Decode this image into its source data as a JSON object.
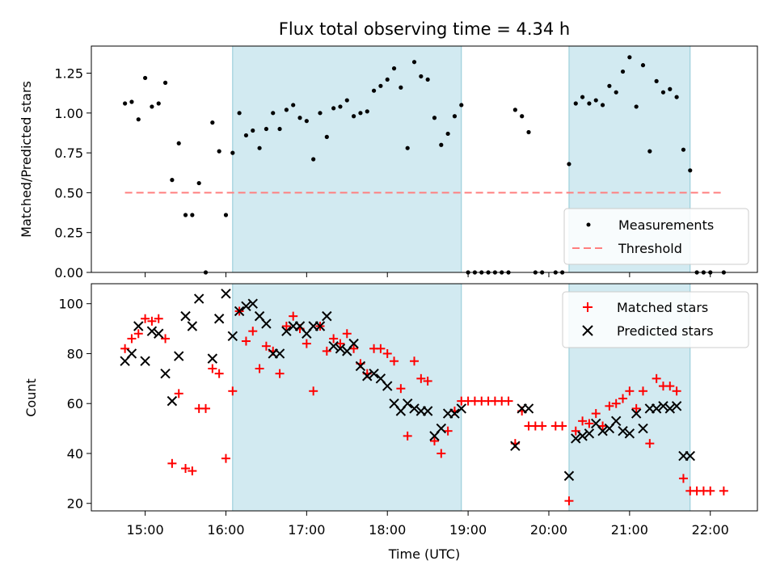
{
  "title": "Flux total observing time = 4.34 h",
  "shading_color": "#add8e6",
  "shaded_intervals": [
    [
      "16:05",
      "18:55"
    ],
    [
      "20:15",
      "21:45"
    ]
  ],
  "chart_data": [
    {
      "type": "scatter",
      "ylabel": "Matched/Predicted stars",
      "ylim": [
        0,
        1.42
      ],
      "yticks": [
        "0.00",
        "0.25",
        "0.50",
        "0.75",
        "1.00",
        "1.25"
      ],
      "legend": {
        "placement": "lower-right",
        "entries": [
          "Measurements",
          "Threshold"
        ]
      },
      "threshold": {
        "name": "Threshold",
        "value": 0.5,
        "x_range": [
          "14:45",
          "22:10"
        ],
        "color": "#ff7f7f"
      },
      "series": [
        {
          "name": "Measurements",
          "color": "#000000",
          "marker": "dot",
          "points": [
            [
              "14:45",
              1.06
            ],
            [
              "14:50",
              1.07
            ],
            [
              "14:55",
              0.96
            ],
            [
              "15:00",
              1.22
            ],
            [
              "15:05",
              1.04
            ],
            [
              "15:10",
              1.06
            ],
            [
              "15:15",
              1.19
            ],
            [
              "15:20",
              0.58
            ],
            [
              "15:25",
              0.81
            ],
            [
              "15:30",
              0.36
            ],
            [
              "15:35",
              0.36
            ],
            [
              "15:40",
              0.56
            ],
            [
              "15:45",
              0.0
            ],
            [
              "15:50",
              0.94
            ],
            [
              "15:55",
              0.76
            ],
            [
              "16:00",
              0.36
            ],
            [
              "16:05",
              0.75
            ],
            [
              "16:10",
              1.0
            ],
            [
              "16:15",
              0.86
            ],
            [
              "16:20",
              0.89
            ],
            [
              "16:25",
              0.78
            ],
            [
              "16:30",
              0.9
            ],
            [
              "16:35",
              1.0
            ],
            [
              "16:40",
              0.9
            ],
            [
              "16:45",
              1.02
            ],
            [
              "16:50",
              1.05
            ],
            [
              "16:55",
              0.97
            ],
            [
              "17:00",
              0.95
            ],
            [
              "17:05",
              0.71
            ],
            [
              "17:10",
              1.0
            ],
            [
              "17:15",
              0.85
            ],
            [
              "17:20",
              1.03
            ],
            [
              "17:25",
              1.04
            ],
            [
              "17:30",
              1.08
            ],
            [
              "17:35",
              0.98
            ],
            [
              "17:40",
              1.0
            ],
            [
              "17:45",
              1.01
            ],
            [
              "17:50",
              1.14
            ],
            [
              "17:55",
              1.17
            ],
            [
              "18:00",
              1.21
            ],
            [
              "18:05",
              1.28
            ],
            [
              "18:10",
              1.16
            ],
            [
              "18:15",
              0.78
            ],
            [
              "18:20",
              1.32
            ],
            [
              "18:25",
              1.23
            ],
            [
              "18:30",
              1.21
            ],
            [
              "18:35",
              0.97
            ],
            [
              "18:40",
              0.8
            ],
            [
              "18:45",
              0.87
            ],
            [
              "18:50",
              0.98
            ],
            [
              "18:55",
              1.05
            ],
            [
              "19:00",
              0.0
            ],
            [
              "19:05",
              0.0
            ],
            [
              "19:10",
              0.0
            ],
            [
              "19:15",
              0.0
            ],
            [
              "19:20",
              0.0
            ],
            [
              "19:25",
              0.0
            ],
            [
              "19:30",
              0.0
            ],
            [
              "19:35",
              1.02
            ],
            [
              "19:40",
              0.98
            ],
            [
              "19:45",
              0.88
            ],
            [
              "19:50",
              0.0
            ],
            [
              "19:55",
              0.0
            ],
            [
              "20:05",
              0.0
            ],
            [
              "20:10",
              0.0
            ],
            [
              "20:15",
              0.68
            ],
            [
              "20:20",
              1.06
            ],
            [
              "20:25",
              1.1
            ],
            [
              "20:30",
              1.06
            ],
            [
              "20:35",
              1.08
            ],
            [
              "20:40",
              1.05
            ],
            [
              "20:45",
              1.17
            ],
            [
              "20:50",
              1.13
            ],
            [
              "20:55",
              1.26
            ],
            [
              "21:00",
              1.35
            ],
            [
              "21:05",
              1.04
            ],
            [
              "21:10",
              1.3
            ],
            [
              "21:15",
              0.76
            ],
            [
              "21:20",
              1.2
            ],
            [
              "21:25",
              1.13
            ],
            [
              "21:30",
              1.15
            ],
            [
              "21:35",
              1.1
            ],
            [
              "21:40",
              0.77
            ],
            [
              "21:45",
              0.64
            ],
            [
              "21:50",
              0.0
            ],
            [
              "21:55",
              0.0
            ],
            [
              "22:00",
              0.0
            ],
            [
              "22:10",
              0.0
            ]
          ]
        }
      ]
    },
    {
      "type": "scatter",
      "xlabel": "Time (UTC)",
      "ylabel": "Count",
      "ylim": [
        17,
        108
      ],
      "yticks": [
        "20",
        "40",
        "60",
        "80",
        "100"
      ],
      "xlim": [
        "14:20",
        "22:35"
      ],
      "xticks": [
        "15:00",
        "16:00",
        "17:00",
        "18:00",
        "19:00",
        "20:00",
        "21:00",
        "22:00"
      ],
      "legend": {
        "placement": "top-right",
        "entries": [
          "Matched stars",
          "Predicted stars"
        ]
      },
      "series": [
        {
          "name": "Matched stars",
          "color": "#ff0000",
          "marker": "plus",
          "points": [
            [
              "14:45",
              82
            ],
            [
              "14:50",
              86
            ],
            [
              "14:55",
              88
            ],
            [
              "15:00",
              94
            ],
            [
              "15:05",
              93
            ],
            [
              "15:10",
              94
            ],
            [
              "15:15",
              86
            ],
            [
              "15:20",
              36
            ],
            [
              "15:25",
              64
            ],
            [
              "15:30",
              34
            ],
            [
              "15:35",
              33
            ],
            [
              "15:40",
              58
            ],
            [
              "15:45",
              58
            ],
            [
              "15:50",
              74
            ],
            [
              "15:55",
              72
            ],
            [
              "16:00",
              38
            ],
            [
              "16:05",
              65
            ],
            [
              "16:10",
              97
            ],
            [
              "16:15",
              85
            ],
            [
              "16:20",
              89
            ],
            [
              "16:25",
              74
            ],
            [
              "16:30",
              83
            ],
            [
              "16:35",
              81
            ],
            [
              "16:40",
              72
            ],
            [
              "16:45",
              91
            ],
            [
              "16:50",
              95
            ],
            [
              "16:55",
              90
            ],
            [
              "17:00",
              84
            ],
            [
              "17:05",
              65
            ],
            [
              "17:10",
              91
            ],
            [
              "17:15",
              81
            ],
            [
              "17:20",
              86
            ],
            [
              "17:25",
              84
            ],
            [
              "17:30",
              88
            ],
            [
              "17:35",
              82
            ],
            [
              "17:40",
              76
            ],
            [
              "17:45",
              72
            ],
            [
              "17:50",
              82
            ],
            [
              "17:55",
              82
            ],
            [
              "18:00",
              80
            ],
            [
              "18:05",
              77
            ],
            [
              "18:10",
              66
            ],
            [
              "18:15",
              47
            ],
            [
              "18:20",
              77
            ],
            [
              "18:25",
              70
            ],
            [
              "18:30",
              69
            ],
            [
              "18:35",
              45
            ],
            [
              "18:40",
              40
            ],
            [
              "18:45",
              49
            ],
            [
              "18:50",
              57
            ],
            [
              "18:55",
              61
            ],
            [
              "19:00",
              61
            ],
            [
              "19:05",
              61
            ],
            [
              "19:10",
              61
            ],
            [
              "19:15",
              61
            ],
            [
              "19:20",
              61
            ],
            [
              "19:25",
              61
            ],
            [
              "19:30",
              61
            ],
            [
              "19:35",
              44
            ],
            [
              "19:40",
              57
            ],
            [
              "19:45",
              51
            ],
            [
              "19:50",
              51
            ],
            [
              "19:55",
              51
            ],
            [
              "20:05",
              51
            ],
            [
              "20:10",
              51
            ],
            [
              "20:15",
              21
            ],
            [
              "20:20",
              49
            ],
            [
              "20:25",
              53
            ],
            [
              "20:30",
              52
            ],
            [
              "20:35",
              56
            ],
            [
              "20:40",
              51
            ],
            [
              "20:45",
              59
            ],
            [
              "20:50",
              60
            ],
            [
              "20:55",
              62
            ],
            [
              "21:00",
              65
            ],
            [
              "21:05",
              58
            ],
            [
              "21:10",
              65
            ],
            [
              "21:15",
              44
            ],
            [
              "21:20",
              70
            ],
            [
              "21:25",
              67
            ],
            [
              "21:30",
              67
            ],
            [
              "21:35",
              65
            ],
            [
              "21:40",
              30
            ],
            [
              "21:45",
              25
            ],
            [
              "21:50",
              25
            ],
            [
              "21:55",
              25
            ],
            [
              "22:00",
              25
            ],
            [
              "22:10",
              25
            ]
          ]
        },
        {
          "name": "Predicted stars",
          "color": "#000000",
          "marker": "x",
          "points": [
            [
              "14:45",
              77
            ],
            [
              "14:50",
              80
            ],
            [
              "14:55",
              91
            ],
            [
              "15:00",
              77
            ],
            [
              "15:05",
              89
            ],
            [
              "15:10",
              88
            ],
            [
              "15:15",
              72
            ],
            [
              "15:20",
              61
            ],
            [
              "15:25",
              79
            ],
            [
              "15:30",
              95
            ],
            [
              "15:35",
              91
            ],
            [
              "15:40",
              102
            ],
            [
              "15:50",
              78
            ],
            [
              "15:55",
              94
            ],
            [
              "16:00",
              104
            ],
            [
              "16:05",
              87
            ],
            [
              "16:10",
              97
            ],
            [
              "16:15",
              99
            ],
            [
              "16:20",
              100
            ],
            [
              "16:25",
              95
            ],
            [
              "16:30",
              92
            ],
            [
              "16:35",
              80
            ],
            [
              "16:40",
              80
            ],
            [
              "16:45",
              89
            ],
            [
              "16:50",
              91
            ],
            [
              "16:55",
              91
            ],
            [
              "17:00",
              88
            ],
            [
              "17:05",
              91
            ],
            [
              "17:10",
              91
            ],
            [
              "17:15",
              95
            ],
            [
              "17:20",
              83
            ],
            [
              "17:25",
              82
            ],
            [
              "17:30",
              81
            ],
            [
              "17:35",
              84
            ],
            [
              "17:40",
              75
            ],
            [
              "17:45",
              71
            ],
            [
              "17:50",
              72
            ],
            [
              "17:55",
              70
            ],
            [
              "18:00",
              67
            ],
            [
              "18:05",
              60
            ],
            [
              "18:10",
              57
            ],
            [
              "18:15",
              60
            ],
            [
              "18:20",
              58
            ],
            [
              "18:25",
              57
            ],
            [
              "18:30",
              57
            ],
            [
              "18:35",
              47
            ],
            [
              "18:40",
              50
            ],
            [
              "18:45",
              56
            ],
            [
              "18:50",
              56
            ],
            [
              "18:55",
              58
            ],
            [
              "19:35",
              43
            ],
            [
              "19:40",
              58
            ],
            [
              "19:45",
              58
            ],
            [
              "20:15",
              31
            ],
            [
              "20:20",
              46
            ],
            [
              "20:25",
              47
            ],
            [
              "20:30",
              48
            ],
            [
              "20:35",
              52
            ],
            [
              "20:40",
              49
            ],
            [
              "20:45",
              50
            ],
            [
              "20:50",
              53
            ],
            [
              "20:55",
              49
            ],
            [
              "21:00",
              48
            ],
            [
              "21:05",
              56
            ],
            [
              "21:10",
              50
            ],
            [
              "21:15",
              58
            ],
            [
              "21:20",
              58
            ],
            [
              "21:25",
              59
            ],
            [
              "21:30",
              58
            ],
            [
              "21:35",
              59
            ],
            [
              "21:40",
              39
            ],
            [
              "21:45",
              39
            ]
          ]
        }
      ]
    }
  ]
}
